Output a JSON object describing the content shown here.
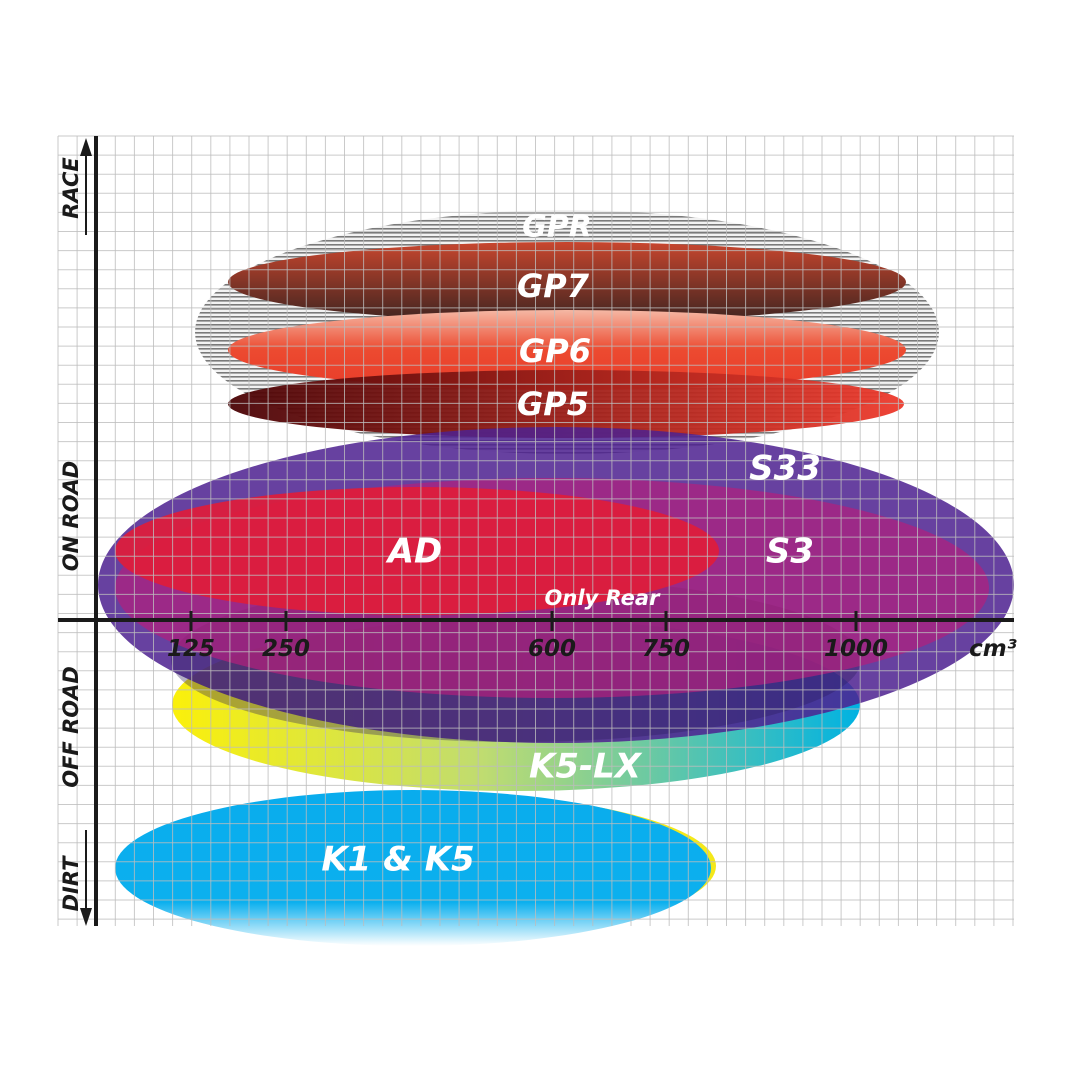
{
  "chart_data": {
    "type": "positioning-ellipses",
    "x_axis": {
      "unit": "cm³",
      "ticks": [
        125,
        250,
        600,
        750,
        1000
      ]
    },
    "y_axis": {
      "labels": [
        "RACE",
        "ON ROAD",
        "OFF ROAD",
        "DIRT"
      ]
    },
    "grid": true,
    "products": {
      "gpr": "GPR",
      "gp7": "GP7",
      "gp6": "GP6",
      "gp5": "GP5",
      "s33": "S33",
      "s3": "S3",
      "ad": "AD",
      "only_rear": "Only Rear",
      "k5lx": "K5-LX",
      "k1k5": "K1 & K5"
    },
    "colors": {
      "gpr": "#8a8a8a",
      "gp7": "#8a3a2a",
      "gp6": "#e8412c",
      "gp5": "#7a0c0c",
      "s33": "#5a2a90",
      "s3": "#a01e82",
      "ad": "#de1c3c",
      "k5lx": "#f4ec10",
      "k1k5": "#0aaeea"
    }
  }
}
